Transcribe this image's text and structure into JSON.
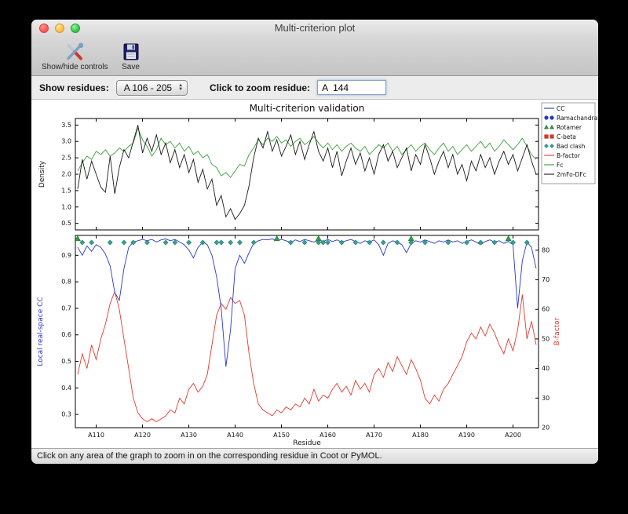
{
  "window": {
    "title": "Multi-criterion plot"
  },
  "toolbar": {
    "items": [
      {
        "label": "Show/hide controls"
      },
      {
        "label": "Save"
      }
    ]
  },
  "controls": {
    "show_residues_label": "Show residues:",
    "residue_range": "A 106 - 205",
    "zoom_label": "Click to zoom residue:",
    "zoom_value": "A  144"
  },
  "status": "Click on any area of the graph to zoom in on the corresponding residue in Coot or PyMOL.",
  "chart_data": {
    "type": "line",
    "title": "Multi-criterion validation",
    "x_label": "Residue",
    "x_start": 106,
    "x_end": 205,
    "x_ticks": [
      "A110",
      "A120",
      "A130",
      "A140",
      "A150",
      "A160",
      "A170",
      "A180",
      "A190",
      "A200"
    ],
    "subplots": [
      {
        "ylabel": "Density",
        "ylim": [
          0.3,
          3.7
        ],
        "yticks": [
          0.5,
          1.0,
          1.5,
          2.0,
          2.5,
          3.0,
          3.5
        ],
        "series": [
          {
            "name": "Fc",
            "color": "#3c9e3c",
            "values": [
              2.1,
              2.35,
              2.55,
              2.45,
              2.7,
              2.6,
              2.75,
              2.55,
              2.65,
              2.8,
              2.7,
              2.85,
              2.95,
              3.4,
              3.05,
              2.85,
              2.55,
              2.75,
              3.1,
              2.9,
              3.0,
              2.8,
              2.95,
              2.7,
              2.85,
              2.6,
              2.7,
              2.5,
              2.6,
              2.3,
              2.2,
              1.95,
              2.05,
              1.9,
              2.1,
              2.3,
              2.25,
              2.6,
              2.8,
              3.05,
              2.9,
              3.1,
              3.0,
              3.15,
              2.95,
              3.05,
              2.85,
              3.0,
              3.1,
              2.9,
              3.0,
              3.15,
              2.95,
              2.8,
              2.95,
              2.75,
              2.9,
              2.7,
              2.85,
              2.95,
              2.8,
              2.7,
              2.85,
              2.6,
              2.75,
              2.9,
              2.8,
              2.95,
              2.7,
              2.85,
              2.6,
              2.75,
              2.9,
              2.7,
              2.85,
              2.95,
              2.75,
              2.6,
              2.8,
              2.95,
              2.7,
              2.85,
              2.6,
              2.75,
              2.9,
              2.7,
              2.85,
              3.0,
              2.8,
              2.95,
              2.7,
              2.85,
              3.05,
              2.9,
              2.75,
              2.9,
              3.1,
              2.85,
              2.6,
              2.45
            ]
          },
          {
            "name": "2mFo-DFc",
            "color": "#1a1a1a",
            "values": [
              1.55,
              2.45,
              1.85,
              2.4,
              2.0,
              1.6,
              1.45,
              2.55,
              1.4,
              2.2,
              2.75,
              2.5,
              3.0,
              3.5,
              2.65,
              3.1,
              2.7,
              3.2,
              2.6,
              2.95,
              2.35,
              2.75,
              2.2,
              2.6,
              2.05,
              2.45,
              1.75,
              2.15,
              1.55,
              1.85,
              1.05,
              1.35,
              0.7,
              0.95,
              0.62,
              0.8,
              1.05,
              1.65,
              2.5,
              3.1,
              2.8,
              3.3,
              2.7,
              3.05,
              2.55,
              2.85,
              3.2,
              2.6,
              3.0,
              2.45,
              2.9,
              3.3,
              2.7,
              2.4,
              2.8,
              2.2,
              2.7,
              1.95,
              2.4,
              2.8,
              2.3,
              2.65,
              2.1,
              2.5,
              2.0,
              2.6,
              2.9,
              2.4,
              2.7,
              2.2,
              2.5,
              2.8,
              2.1,
              2.6,
              2.3,
              2.9,
              2.5,
              2.0,
              2.4,
              2.7,
              2.2,
              2.6,
              2.0,
              2.3,
              1.8,
              2.4,
              2.1,
              2.6,
              2.2,
              2.5,
              2.0,
              2.4,
              2.7,
              2.3,
              2.6,
              2.1,
              2.5,
              2.9,
              2.4,
              2.0
            ]
          }
        ]
      },
      {
        "ylabel_left": "Local real-space CC",
        "ylim_left": [
          0.25,
          0.975
        ],
        "yticks_left": [
          0.3,
          0.4,
          0.5,
          0.6,
          0.7,
          0.8,
          0.9
        ],
        "ylabel_right": "B-factor",
        "ylim_right": [
          20,
          85
        ],
        "yticks_right": [
          20,
          30,
          40,
          50,
          60,
          70,
          80
        ],
        "series": [
          {
            "name": "CC",
            "axis": "left",
            "color": "#2936cc",
            "values": [
              0.93,
              0.9,
              0.935,
              0.915,
              0.94,
              0.93,
              0.905,
              0.86,
              0.76,
              0.73,
              0.85,
              0.93,
              0.95,
              0.955,
              0.96,
              0.955,
              0.96,
              0.95,
              0.958,
              0.962,
              0.955,
              0.96,
              0.95,
              0.94,
              0.92,
              0.89,
              0.93,
              0.95,
              0.94,
              0.9,
              0.82,
              0.7,
              0.48,
              0.62,
              0.85,
              0.9,
              0.87,
              0.91,
              0.945,
              0.955,
              0.96,
              0.958,
              0.962,
              0.955,
              0.96,
              0.955,
              0.948,
              0.958,
              0.952,
              0.96,
              0.955,
              0.95,
              0.958,
              0.952,
              0.96,
              0.952,
              0.958,
              0.95,
              0.955,
              0.96,
              0.952,
              0.945,
              0.955,
              0.95,
              0.958,
              0.94,
              0.9,
              0.945,
              0.955,
              0.95,
              0.94,
              0.91,
              0.945,
              0.955,
              0.95,
              0.958,
              0.952,
              0.945,
              0.955,
              0.95,
              0.958,
              0.95,
              0.955,
              0.945,
              0.952,
              0.958,
              0.95,
              0.94,
              0.952,
              0.958,
              0.95,
              0.955,
              0.945,
              0.952,
              0.94,
              0.7,
              0.88,
              0.95,
              0.93,
              0.85
            ]
          },
          {
            "name": "B-factor",
            "axis": "right",
            "color": "#e03a30",
            "values": [
              38,
              45,
              40,
              48,
              43,
              50,
              55,
              62,
              66,
              60,
              50,
              40,
              30,
              25,
              23,
              22,
              23,
              22,
              23,
              24,
              26,
              25,
              30,
              28,
              33,
              35,
              32,
              34,
              38,
              48,
              58,
              62,
              60,
              64,
              62,
              63,
              58,
              45,
              35,
              28,
              26,
              25,
              24,
              26,
              25,
              27,
              26,
              28,
              27,
              30,
              28,
              33,
              29,
              31,
              30,
              33,
              35,
              32,
              34,
              31,
              36,
              33,
              35,
              32,
              38,
              40,
              37,
              42,
              39,
              44,
              41,
              38,
              43,
              40,
              36,
              30,
              28,
              31,
              29,
              33,
              35,
              38,
              41,
              44,
              49,
              52,
              50,
              54,
              51,
              55,
              52,
              48,
              45,
              50,
              46,
              53,
              65,
              50,
              56,
              48
            ]
          }
        ],
        "markers": [
          {
            "name": "Bad clash",
            "shape": "diamond",
            "color": "#35a08f",
            "residues": [
              107,
              109,
              113,
              116,
              118,
              121,
              125,
              127,
              130,
              133,
              136,
              137,
              139,
              141,
              144,
              152,
              155,
              158,
              159,
              160,
              163,
              166,
              169,
              172,
              175,
              178,
              181,
              186,
              190,
              193,
              196,
              200,
              203
            ]
          },
          {
            "name": "Rotamer",
            "shape": "triangle",
            "color": "#2f9e44",
            "residues": [
              106,
              149,
              158,
              178,
              199
            ]
          },
          {
            "name": "Ramachandran",
            "shape": "circle",
            "color": "#2936cc",
            "residues": []
          },
          {
            "name": "C-beta",
            "shape": "square",
            "color": "#cc3b2f",
            "residues": []
          }
        ]
      }
    ],
    "legend": [
      {
        "label": "CC",
        "type": "line",
        "color": "#2936cc"
      },
      {
        "label": "Ramachandran",
        "type": "circle",
        "color": "#2936cc"
      },
      {
        "label": "Rotamer",
        "type": "triangle",
        "color": "#2f9e44"
      },
      {
        "label": "C-beta",
        "type": "square",
        "color": "#cc3b2f"
      },
      {
        "label": "Bad clash",
        "type": "diamond",
        "color": "#35a08f"
      },
      {
        "label": "B-factor",
        "type": "line",
        "color": "#e03a30"
      },
      {
        "label": "Fc",
        "type": "line",
        "color": "#3c9e3c"
      },
      {
        "label": "2mFo-DFc",
        "type": "line",
        "color": "#1a1a1a"
      }
    ]
  }
}
